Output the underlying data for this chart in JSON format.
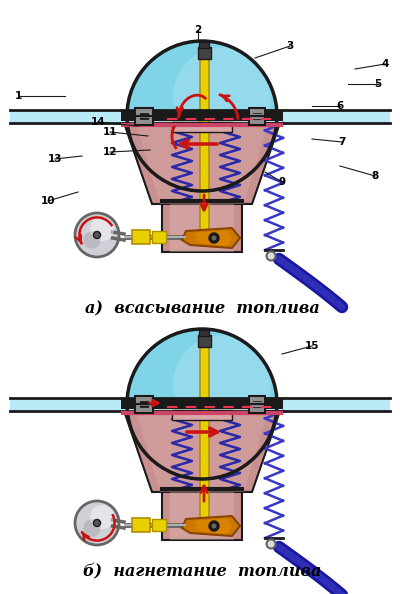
{
  "bg_color": "#ffffff",
  "title_a": "а)  всасывание  топлива",
  "title_b": "б)  нагнетание  топлива",
  "cyan_dome": "#7fd4e8",
  "cyan_dome2": "#a8dff0",
  "cyan_tube": "#b8eaf8",
  "pink_body": "#c89090",
  "pink_mid": "#d8a8a8",
  "pink_light": "#e8c0c0",
  "dark_gray": "#1a1a1a",
  "mid_gray": "#666666",
  "light_gray": "#b0b0b0",
  "silver": "#d0d0d8",
  "yellow_rod": "#e8d000",
  "dark_yellow": "#b09000",
  "spring_color": "#2828a8",
  "spring_outer": "#3838c8",
  "red_arrow": "#cc1111",
  "dark_blue_pipe": "#1818a0",
  "orange_lever": "#cc7700",
  "orange_lever2": "#e89000",
  "pink_sep": "#cc4466",
  "label_color": "#000000",
  "dashed_pink": "#ee3355",
  "valve_gray": "#909090",
  "black": "#000000",
  "white": "#ffffff",
  "tube_dark": "#004488"
}
